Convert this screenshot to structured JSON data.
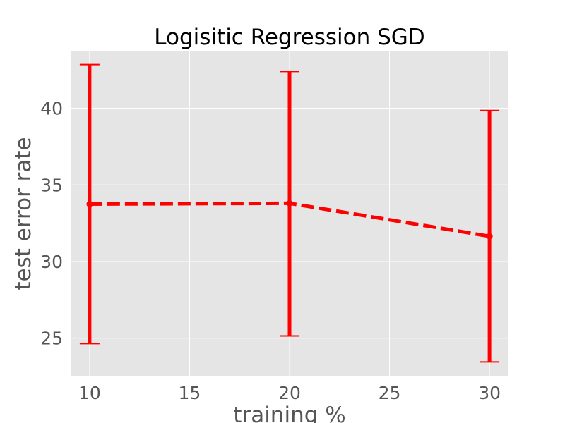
{
  "chart_data": {
    "type": "line",
    "title": "Logisitic Regression SGD",
    "xlabel": "training %",
    "ylabel": "test error rate",
    "x": [
      10,
      20,
      30
    ],
    "series": [
      {
        "values": [
          33.75,
          33.8,
          31.65
        ],
        "error_low": [
          24.65,
          25.15,
          23.45
        ],
        "error_high": [
          42.85,
          42.4,
          39.85
        ],
        "color": "#ff0000",
        "line_style": "dashed",
        "marker": "circle"
      }
    ],
    "xlim": [
      9.05,
      30.95
    ],
    "ylim": [
      22.55,
      43.75
    ],
    "xticks": [
      10,
      15,
      20,
      25,
      30
    ],
    "yticks": [
      25,
      30,
      35,
      40
    ],
    "grid": true,
    "style": "ggplot",
    "background_color": "#e5e5e5",
    "grid_color": "#ffffff"
  }
}
